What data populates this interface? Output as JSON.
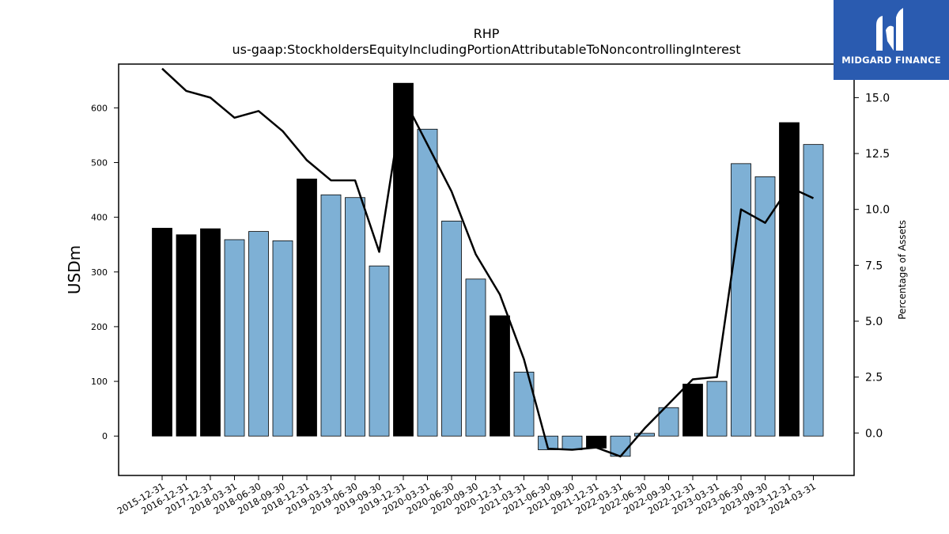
{
  "chart_data": {
    "type": "bar",
    "title": "RHP",
    "subtitle": "us-gaap:StockholdersEquityIncludingPortionAttributableToNoncontrollingInterest",
    "ylabel": "USDm",
    "y2label": "Percentage of Assets",
    "ylim": [
      -72,
      680
    ],
    "y2lim": [
      -1.9,
      16.5
    ],
    "yticks": [
      0,
      100,
      200,
      300,
      400,
      500,
      600
    ],
    "y2ticks": [
      0.0,
      2.5,
      5.0,
      7.5,
      10.0,
      12.5,
      15.0
    ],
    "y2tick_labels": [
      "0.0",
      "2.5",
      "5.0",
      "7.5",
      "10.0",
      "12.5",
      "15.0"
    ],
    "grid": false,
    "categories": [
      "2015-12-31",
      "2016-12-31",
      "2017-12-31",
      "2018-03-31",
      "2018-06-30",
      "2018-09-30",
      "2018-12-31",
      "2019-03-31",
      "2019-06-30",
      "2019-09-30",
      "2019-12-31",
      "2020-03-31",
      "2020-06-30",
      "2020-09-30",
      "2020-12-31",
      "2021-03-31",
      "2021-06-30",
      "2021-09-30",
      "2021-12-31",
      "2022-03-31",
      "2022-06-30",
      "2022-09-30",
      "2022-12-31",
      "2023-03-31",
      "2023-06-30",
      "2023-09-30",
      "2023-12-31",
      "2024-03-31"
    ],
    "values": [
      380,
      368,
      379,
      359,
      374,
      357,
      470,
      441,
      436,
      311,
      645,
      561,
      393,
      287,
      220,
      117,
      -25,
      -25,
      -22,
      -37,
      5,
      52,
      95,
      100,
      498,
      474,
      573,
      533
    ],
    "annual_flags": [
      true,
      true,
      true,
      false,
      false,
      false,
      true,
      false,
      false,
      false,
      true,
      false,
      false,
      false,
      true,
      false,
      false,
      false,
      true,
      false,
      false,
      false,
      true,
      false,
      false,
      false,
      true,
      false
    ],
    "line_values": [
      16.3,
      15.3,
      15.0,
      14.1,
      14.4,
      13.5,
      12.2,
      11.3,
      11.3,
      8.1,
      15.0,
      12.9,
      10.8,
      8.0,
      6.2,
      3.3,
      -0.7,
      -0.75,
      -0.65,
      -1.05,
      0.2,
      1.3,
      2.4,
      2.5,
      10.0,
      9.4,
      11.0,
      10.5
    ],
    "colors": {
      "annual_bar": "#000000",
      "quarterly_bar": "#7eb0d5",
      "line": "#000000"
    }
  },
  "logo": {
    "text": "MIDGARD FINANCE",
    "background": "#2a5bb0"
  }
}
